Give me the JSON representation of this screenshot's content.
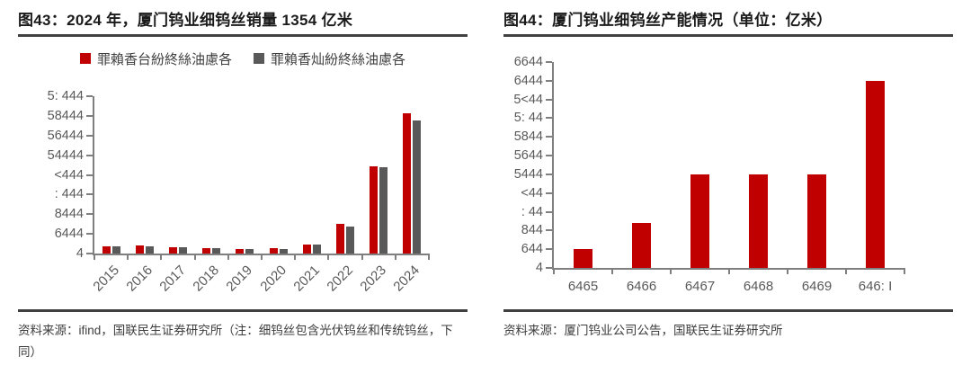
{
  "colors": {
    "series_red": "#c00000",
    "series_gray": "#595959",
    "axis": "#7f7f7f",
    "tick_label": "#595959",
    "title_text": "#1a1a1a",
    "rule": "#404040",
    "source_text": "#3d3d3d"
  },
  "left_panel": {
    "title": "图43：2024 年，厦门钨业细钨丝销量 1354 亿米",
    "source_note": "资料来源：ifind，国联民生证券研究所（注：细钨丝包含光伏钨丝和传统钨丝，下同）"
  },
  "right_panel": {
    "title": "图44：厦门钨业细钨丝产能情况（单位：亿米）",
    "source_note": "资料来源：厦门钨业公司公告，国联民生证券研究所"
  },
  "chart_data": [
    {
      "type": "bar",
      "title": "图43：2024 年，厦门钨业细钨丝销量 1354 亿米",
      "categories": [
        "2015",
        "2016",
        "2017",
        "2018",
        "2019",
        "2020",
        "2021",
        "2022",
        "2023",
        "2024"
      ],
      "series": [
        {
          "name": "罪賴香台紛終絲油慮各",
          "color": "#c00000",
          "values": [
            75,
            80,
            65,
            55,
            48,
            52,
            95,
            300,
            885,
            1430
          ]
        },
        {
          "name": "罪賴香灿紛終絲油慮各",
          "color": "#595959",
          "values": [
            70,
            75,
            62,
            52,
            45,
            48,
            90,
            270,
            880,
            1354
          ]
        }
      ],
      "ylim": [
        0,
        1600
      ],
      "ytick_labels_top_to_bottom": [
        "5: 444",
        "58444",
        "56444",
        "54444",
        "<444",
        ": 444",
        "8444",
        "6444",
        "4"
      ],
      "xlabel": "",
      "ylabel": "",
      "legend_position": "top",
      "grid": false
    },
    {
      "type": "bar",
      "title": "图44：厦门钨业细钨丝产能情况（单位：亿米）",
      "categories": [
        "6465",
        "6466",
        "6467",
        "6468",
        "6469",
        "646: I"
      ],
      "series": [
        {
          "name": "产能",
          "color": "#c00000",
          "values": [
            200,
            480,
            1000,
            1000,
            1000,
            2000
          ]
        }
      ],
      "ylim": [
        0,
        2200
      ],
      "ytick_labels_top_to_bottom": [
        "6644",
        "6444",
        "5<44",
        "5: 44",
        "5844",
        "5644",
        "5444",
        "<44",
        ": 44",
        "844",
        "644",
        "4"
      ],
      "xlabel": "",
      "ylabel": "",
      "legend_position": "none",
      "grid": false
    }
  ]
}
